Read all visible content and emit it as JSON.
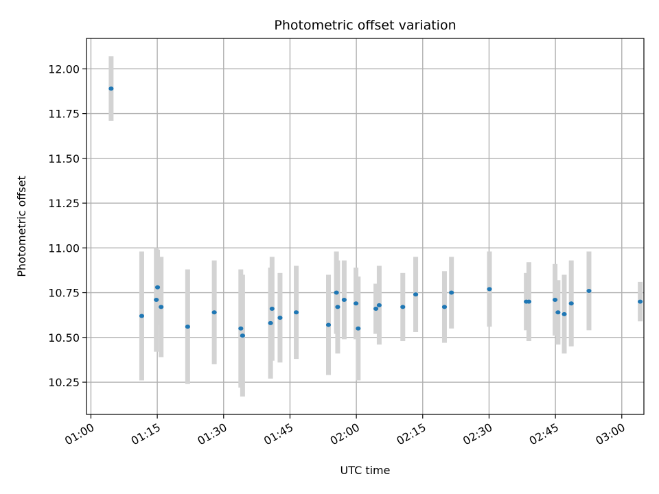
{
  "chart_data": {
    "type": "scatter",
    "title": "Photometric offset variation",
    "xlabel": "UTC time",
    "ylabel": "Photometric offset",
    "x_ticks": [
      "01:00",
      "01:15",
      "01:30",
      "01:45",
      "02:00",
      "02:15",
      "02:30",
      "02:45",
      "03:00"
    ],
    "y_ticks": [
      "10.25",
      "10.50",
      "10.75",
      "11.00",
      "11.25",
      "11.50",
      "11.75",
      "12.00"
    ],
    "xlim": [
      "00:59",
      "03:05"
    ],
    "ylim": [
      10.07,
      12.17
    ],
    "grid": true,
    "point_color": "#1f77b4",
    "errorbar_color": "#d3d3d3",
    "points": [
      {
        "x": "01:04:34",
        "y": 11.89,
        "err": 0.18
      },
      {
        "x": "01:11:29",
        "y": 10.62,
        "err": 0.36
      },
      {
        "x": "01:14:47",
        "y": 10.71,
        "err": 0.29
      },
      {
        "x": "01:15:04",
        "y": 10.78,
        "err": 0.21
      },
      {
        "x": "01:15:52",
        "y": 10.67,
        "err": 0.28
      },
      {
        "x": "01:21:52",
        "y": 10.56,
        "err": 0.32
      },
      {
        "x": "01:27:53",
        "y": 10.64,
        "err": 0.29
      },
      {
        "x": "01:33:53",
        "y": 10.55,
        "err": 0.33
      },
      {
        "x": "01:34:17",
        "y": 10.51,
        "err": 0.34
      },
      {
        "x": "01:40:36",
        "y": 10.58,
        "err": 0.31
      },
      {
        "x": "01:40:57",
        "y": 10.66,
        "err": 0.29
      },
      {
        "x": "01:42:45",
        "y": 10.61,
        "err": 0.25
      },
      {
        "x": "01:46:25",
        "y": 10.64,
        "err": 0.26
      },
      {
        "x": "01:53:42",
        "y": 10.57,
        "err": 0.28
      },
      {
        "x": "01:55:30",
        "y": 10.75,
        "err": 0.23
      },
      {
        "x": "01:55:47",
        "y": 10.67,
        "err": 0.26
      },
      {
        "x": "01:57:15",
        "y": 10.71,
        "err": 0.22
      },
      {
        "x": "01:59:55",
        "y": 10.69,
        "err": 0.2
      },
      {
        "x": "02:00:25",
        "y": 10.55,
        "err": 0.29
      },
      {
        "x": "02:04:25",
        "y": 10.66,
        "err": 0.14
      },
      {
        "x": "02:05:10",
        "y": 10.68,
        "err": 0.22
      },
      {
        "x": "02:10:30",
        "y": 10.67,
        "err": 0.19
      },
      {
        "x": "02:13:25",
        "y": 10.74,
        "err": 0.21
      },
      {
        "x": "02:19:55",
        "y": 10.67,
        "err": 0.2
      },
      {
        "x": "02:21:30",
        "y": 10.75,
        "err": 0.2
      },
      {
        "x": "02:30:05",
        "y": 10.77,
        "err": 0.21
      },
      {
        "x": "02:38:25",
        "y": 10.7,
        "err": 0.16
      },
      {
        "x": "02:39:00",
        "y": 10.7,
        "err": 0.22
      },
      {
        "x": "02:44:55",
        "y": 10.71,
        "err": 0.2
      },
      {
        "x": "02:45:35",
        "y": 10.64,
        "err": 0.18
      },
      {
        "x": "02:47:00",
        "y": 10.63,
        "err": 0.22
      },
      {
        "x": "02:48:35",
        "y": 10.69,
        "err": 0.24
      },
      {
        "x": "02:52:35",
        "y": 10.76,
        "err": 0.22
      },
      {
        "x": "03:04:10",
        "y": 10.7,
        "err": 0.11
      }
    ]
  }
}
